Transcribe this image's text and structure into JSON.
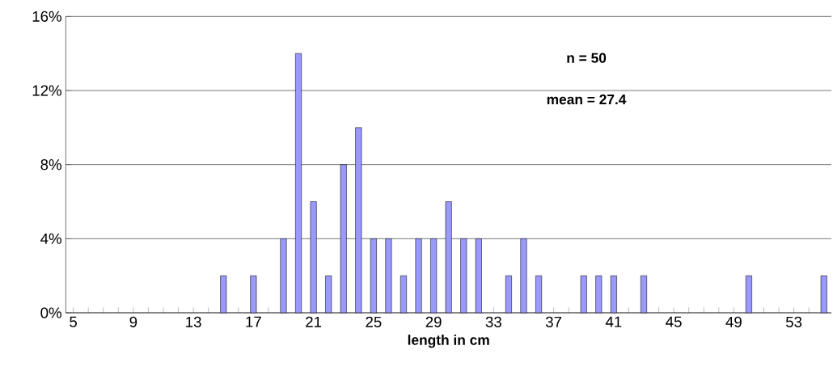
{
  "chart_data": {
    "type": "bar",
    "xlabel": "length in cm",
    "categories": [
      "5",
      null,
      null,
      null,
      "9",
      null,
      null,
      null,
      "13",
      null,
      null,
      null,
      "17",
      null,
      null,
      null,
      "21",
      null,
      null,
      null,
      "25",
      null,
      null,
      null,
      "29",
      null,
      null,
      null,
      "33",
      null,
      null,
      null,
      "37",
      null,
      null,
      null,
      "41",
      null,
      null,
      null,
      "45",
      null,
      null,
      null,
      "49",
      null,
      null,
      null,
      "53",
      null,
      null
    ],
    "values": [
      0,
      0,
      0,
      0,
      0,
      0,
      0,
      0,
      0,
      0,
      2,
      0,
      2,
      0,
      4,
      14,
      6,
      2,
      8,
      10,
      4,
      4,
      2,
      4,
      4,
      6,
      4,
      4,
      0,
      2,
      4,
      2,
      0,
      0,
      2,
      2,
      2,
      0,
      2,
      0,
      0,
      0,
      0,
      0,
      0,
      2,
      0,
      0,
      0,
      0,
      2
    ],
    "color": "#9999ff",
    "ylim": [
      0,
      16
    ],
    "yticks": [
      {
        "value": 0,
        "label": "0%"
      },
      {
        "value": 4,
        "label": "4%"
      },
      {
        "value": 8,
        "label": "8%"
      },
      {
        "value": 12,
        "label": "12%"
      },
      {
        "value": 16,
        "label": "16%"
      }
    ],
    "grid": "y",
    "annotations": [
      "n = 50",
      "mean = 27.4"
    ]
  }
}
